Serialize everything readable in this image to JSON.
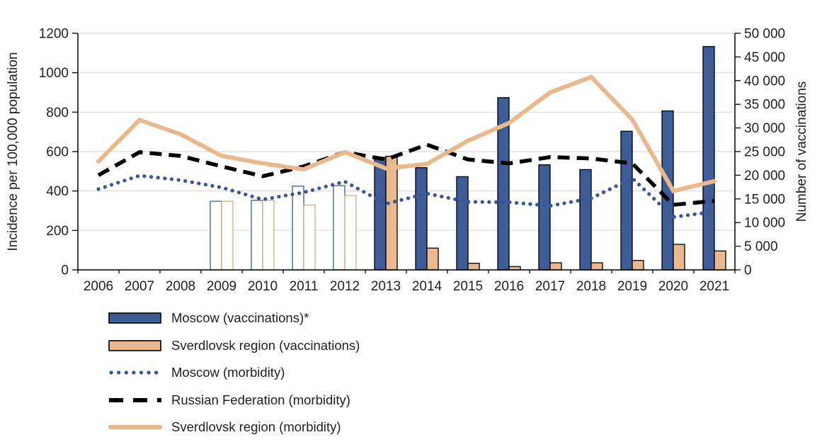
{
  "chart_data": {
    "type": "combo-bar-line",
    "title": "",
    "x": {
      "label": "",
      "categories": [
        "2006",
        "2007",
        "2008",
        "2009",
        "2010",
        "2011",
        "2012",
        "2013",
        "2014",
        "2015",
        "2016",
        "2017",
        "2018",
        "2019",
        "2020",
        "2021"
      ]
    },
    "y_left": {
      "label": "Incidence per 100,000 population",
      "min": 0,
      "max": 1200,
      "step": 200,
      "tick_labels": [
        "0",
        "200",
        "400",
        "600",
        "800",
        "1000",
        "1200"
      ]
    },
    "y_right": {
      "label": "Number of vaccinations",
      "min": 0,
      "max": 50000,
      "step": 5000,
      "tick_labels": [
        "0",
        "5 000",
        "10 000",
        "15 000",
        "20 000",
        "25 000",
        "30 000",
        "35 000",
        "40 000",
        "45 000",
        "50 000"
      ]
    },
    "grid": "horizontal-only",
    "legend_position": "bottom-left",
    "hollow_bar_categories": [
      "2009",
      "2010",
      "2011",
      "2012"
    ],
    "bar_series": [
      {
        "name": "Moscow (vaccinations)*",
        "axis": "right",
        "color_key": "navy",
        "values": [
          null,
          null,
          null,
          14500,
          14700,
          17700,
          17800,
          23800,
          21600,
          19700,
          36400,
          22200,
          21200,
          29300,
          33600,
          47200
        ]
      },
      {
        "name": "Sverdlovsk region (vaccinations)",
        "axis": "right",
        "color_key": "tan",
        "values": [
          null,
          null,
          null,
          14500,
          14700,
          13700,
          15700,
          24000,
          4600,
          1400,
          700,
          1500,
          1500,
          2000,
          5400,
          4000
        ]
      }
    ],
    "line_series": [
      {
        "name": "Moscow (morbidity)",
        "axis": "left",
        "style": "dotted",
        "color_key": "blue_dot",
        "values": [
          410,
          478,
          455,
          418,
          357,
          393,
          448,
          335,
          387,
          345,
          343,
          325,
          363,
          465,
          268,
          295
        ]
      },
      {
        "name": "Russian Federation (morbidity)",
        "axis": "left",
        "style": "dashed",
        "color_key": "black",
        "values": [
          480,
          597,
          578,
          525,
          475,
          525,
          597,
          560,
          635,
          560,
          540,
          572,
          565,
          540,
          330,
          350
        ]
      },
      {
        "name": "Sverdlovsk region (morbidity)",
        "axis": "left",
        "style": "solid",
        "color_key": "tan",
        "values": [
          550,
          760,
          688,
          578,
          540,
          510,
          597,
          515,
          537,
          655,
          745,
          900,
          978,
          763,
          400,
          450
        ]
      }
    ]
  },
  "legend": {
    "items": [
      {
        "label": "Moscow (vaccinations)*",
        "swatch": "navy-bar"
      },
      {
        "label": "Sverdlovsk region (vaccinations)",
        "swatch": "tan-bar"
      },
      {
        "label": "Moscow (morbidity)",
        "swatch": "blue-dotted-line"
      },
      {
        "label": "Russian Federation (morbidity)",
        "swatch": "black-dashed-line"
      },
      {
        "label": "Sverdlovsk region (morbidity)",
        "swatch": "tan-solid-line"
      }
    ]
  },
  "colors": {
    "navy": "#3E5C97",
    "tan": "#E9B88C",
    "tan_outline": "#DFA878",
    "blue_dot": "#3A5795",
    "black": "#000000",
    "grid": "#D9D9D9",
    "axis": "#000000",
    "text": "#1f1f1f",
    "hollow_fill": "#FFFFFF"
  }
}
